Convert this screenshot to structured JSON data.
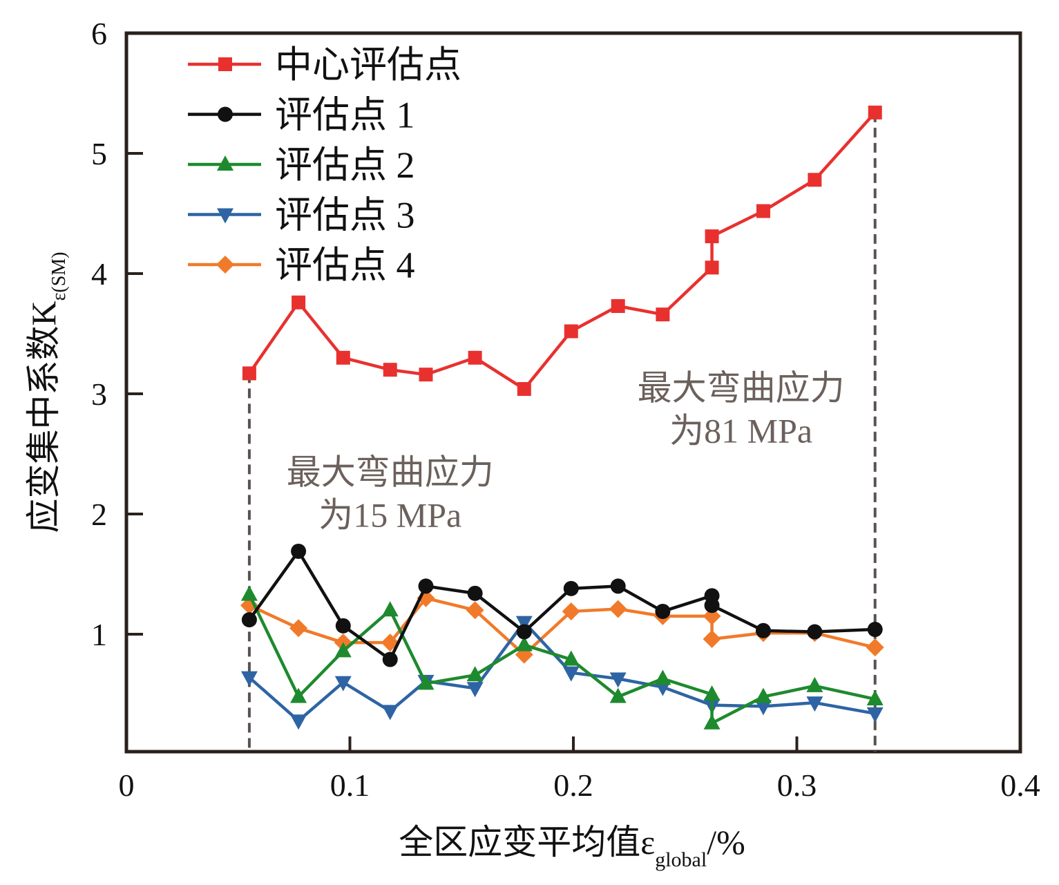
{
  "chart_data": {
    "type": "line",
    "title": "",
    "xlabel": "全区应变平均值ε",
    "xlabel_sub": "global",
    "xlabel_suffix": "/%",
    "ylabel": "应变集中系数K",
    "ylabel_sub": "ε(SM)",
    "xlim": [
      0,
      0.4
    ],
    "ylim": [
      0,
      6
    ],
    "x_ticks": [
      0,
      0.1,
      0.2,
      0.3,
      0.4
    ],
    "x_tick_labels": [
      "0",
      "0.1",
      "0.2",
      "0.3",
      "0.4"
    ],
    "y_ticks": [
      1,
      2,
      3,
      4,
      5,
      6
    ],
    "y_tick_labels": [
      "1",
      "2",
      "3",
      "4",
      "5",
      "6"
    ],
    "grid": false,
    "legend_position": "top-left",
    "series": [
      {
        "name": "中心评估点",
        "color": "#e8312f",
        "marker": "square",
        "x": [
          0.055,
          0.077,
          0.097,
          0.118,
          0.134,
          0.156,
          0.178,
          0.199,
          0.22,
          0.24,
          0.262,
          0.262,
          0.285,
          0.308,
          0.335
        ],
        "y": [
          3.17,
          3.76,
          3.3,
          3.2,
          3.16,
          3.3,
          3.04,
          3.52,
          3.73,
          3.66,
          4.05,
          4.31,
          4.52,
          4.78,
          5.34
        ]
      },
      {
        "name": "评估点 1",
        "color": "#111111",
        "marker": "circle",
        "x": [
          0.055,
          0.077,
          0.097,
          0.118,
          0.134,
          0.156,
          0.178,
          0.199,
          0.22,
          0.24,
          0.262,
          0.262,
          0.285,
          0.308,
          0.335
        ],
        "y": [
          1.12,
          1.69,
          1.07,
          0.79,
          1.4,
          1.34,
          1.02,
          1.38,
          1.4,
          1.19,
          1.32,
          1.24,
          1.03,
          1.02,
          1.04
        ]
      },
      {
        "name": "评估点 2",
        "color": "#1e8a2e",
        "marker": "triangle-up",
        "x": [
          0.055,
          0.077,
          0.097,
          0.118,
          0.134,
          0.156,
          0.178,
          0.199,
          0.22,
          0.24,
          0.262,
          0.262,
          0.285,
          0.308,
          0.335
        ],
        "y": [
          1.33,
          0.48,
          0.86,
          1.2,
          0.59,
          0.66,
          0.91,
          0.79,
          0.48,
          0.63,
          0.5,
          0.26,
          0.48,
          0.57,
          0.46
        ]
      },
      {
        "name": "评估点 3",
        "color": "#2e64a4",
        "marker": "triangle-down",
        "x": [
          0.055,
          0.077,
          0.097,
          0.118,
          0.134,
          0.156,
          0.178,
          0.199,
          0.22,
          0.24,
          0.262,
          0.285,
          0.308,
          0.335
        ],
        "y": [
          0.64,
          0.28,
          0.6,
          0.36,
          0.61,
          0.55,
          1.1,
          0.68,
          0.63,
          0.56,
          0.41,
          0.4,
          0.43,
          0.34
        ]
      },
      {
        "name": "评估点 4",
        "color": "#f07a2a",
        "marker": "diamond",
        "x": [
          0.055,
          0.077,
          0.097,
          0.118,
          0.134,
          0.156,
          0.178,
          0.199,
          0.22,
          0.24,
          0.262,
          0.262,
          0.285,
          0.308,
          0.335
        ],
        "y": [
          1.24,
          1.05,
          0.93,
          0.93,
          1.3,
          1.2,
          0.83,
          1.19,
          1.21,
          1.15,
          1.15,
          0.96,
          1.01,
          1.01,
          0.89
        ]
      }
    ],
    "reference_lines": [
      {
        "x": 0.055,
        "y_top": 3.17,
        "style": "dashed",
        "color": "#5a5250"
      },
      {
        "x": 0.335,
        "y_top": 5.34,
        "style": "dashed",
        "color": "#5a5250"
      }
    ],
    "annotations": [
      {
        "lines": [
          "最大弯曲应力",
          "为15 MPa"
        ],
        "x": 0.118,
        "y": 2.25,
        "color": "#6b605b"
      },
      {
        "lines": [
          "最大弯曲应力",
          "为81 MPa"
        ],
        "x": 0.275,
        "y": 2.95,
        "color": "#6b605b"
      }
    ]
  }
}
